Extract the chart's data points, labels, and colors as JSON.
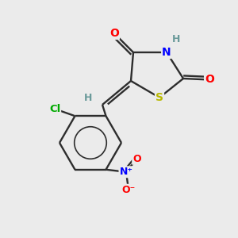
{
  "background_color": "#ebebeb",
  "bond_color": "#2d2d2d",
  "atom_colors": {
    "O": "#ff0000",
    "N": "#0000ff",
    "S": "#b8b800",
    "Cl": "#00aa00",
    "H": "#6a9a9a",
    "C": "#2d2d2d"
  },
  "figsize": [
    3.0,
    3.0
  ],
  "dpi": 100
}
